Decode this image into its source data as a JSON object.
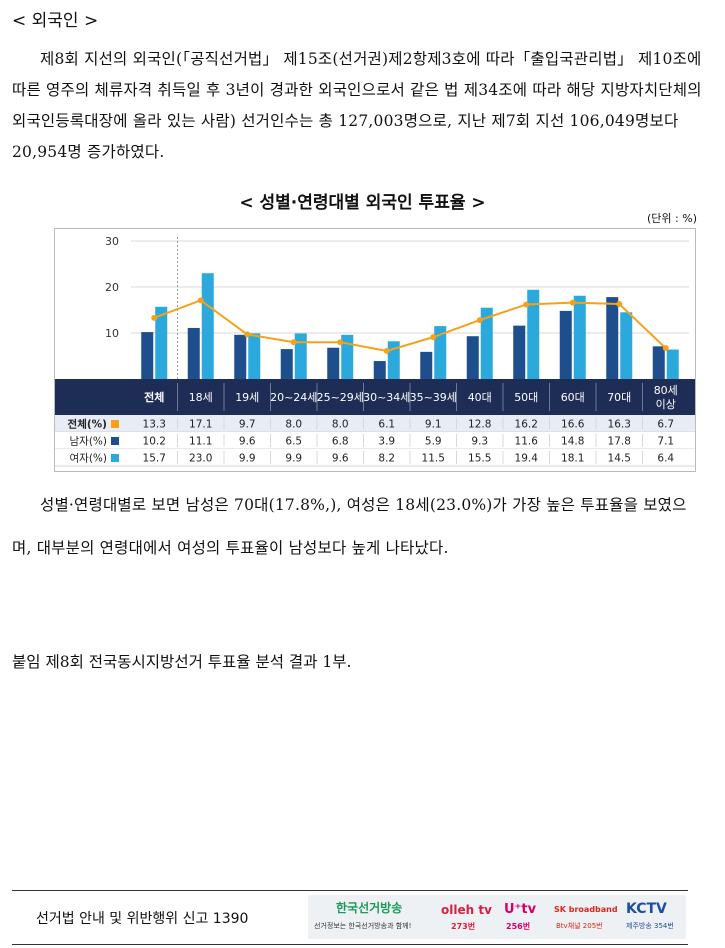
{
  "heading": "< 외국인 >",
  "paragraph1": "제8회 지선의 외국인(「공직선거법」 제15조(선거권)제2항제3호에 따라「출입국관리법」 제10조에 따른 영주의 체류자격 취득일 후 3년이 경과한 외국인으로서 같은 법 제34조에 따라 해당 지방자치단체의 외국인등록대장에 올라 있는 사람) 선거인수는 총 127,003명으로, 지난 제7회 지선 106,049명보다 20,954명 증가하였다.",
  "chart_title": "< 성별·연령대별 외국인 투표율 >",
  "unit": "(단위 : %)",
  "chart_data": {
    "type": "bar",
    "categories": [
      "전체",
      "18세",
      "19세",
      "20~24세",
      "25~29세",
      "30~34세",
      "35~39세",
      "40대",
      "50대",
      "60대",
      "70대",
      "80세 이상"
    ],
    "y_ticks": [
      "10",
      "20",
      "30"
    ],
    "ylim": [
      0,
      30
    ],
    "series": [
      {
        "name": "전체(%)",
        "kind": "line",
        "color": "#f5a11a",
        "values": [
          13.3,
          17.1,
          9.7,
          8.0,
          8.0,
          6.1,
          9.1,
          12.8,
          16.2,
          16.6,
          16.3,
          6.7
        ],
        "labels": [
          "13.3",
          "17.1",
          "9.7",
          "8.0",
          "8.0",
          "6.1",
          "9.1",
          "12.8",
          "16.2",
          "16.6",
          "16.3",
          "6.7"
        ]
      },
      {
        "name": "남자(%)",
        "kind": "bar",
        "color": "#1f4e8c",
        "values": [
          10.2,
          11.1,
          9.6,
          6.5,
          6.8,
          3.9,
          5.9,
          9.3,
          11.6,
          14.8,
          17.8,
          7.1
        ],
        "labels": [
          "10.2",
          "11.1",
          "9.6",
          "6.5",
          "6.8",
          "3.9",
          "5.9",
          "9.3",
          "11.6",
          "14.8",
          "17.8",
          "7.1"
        ]
      },
      {
        "name": "여자(%)",
        "kind": "bar",
        "color": "#2ba8dc",
        "values": [
          15.7,
          23.0,
          9.9,
          9.9,
          9.6,
          8.2,
          11.5,
          15.5,
          19.4,
          18.1,
          14.5,
          6.4
        ],
        "labels": [
          "15.7",
          "23.0",
          "9.9",
          "9.9",
          "9.6",
          "8.2",
          "11.5",
          "15.5",
          "19.4",
          "18.1",
          "14.5",
          "6.4"
        ]
      }
    ]
  },
  "paragraph2": "성별·연령대별로 보면 남성은 70대(17.8%,), 여성은 18세(23.0%)가 가장 높은 투표율을 보였으며, 대부분의 연령대에서 여성의 투표율이 남성보다 높게 나타났다.",
  "attachment": "붙임   제8회 전국동시지방선거 투표율 분석 결과 1부.",
  "footer": {
    "text": "선거법 안내 및 위반행위 신고 1390",
    "logo_main": "한국선거방송",
    "logo_main_sub": "선거정보는 한국선거방송과 함께!",
    "logo_olleh": "olleh tv",
    "logo_olleh_ch": "273번",
    "logo_uplus": "U⁺tv",
    "logo_uplus_ch": "256번",
    "logo_sk": "SK broadband",
    "logo_sk_ch": "Btv채널 205번",
    "logo_kctv": "KCTV",
    "logo_kctv_ch": "제주방송 354번"
  }
}
